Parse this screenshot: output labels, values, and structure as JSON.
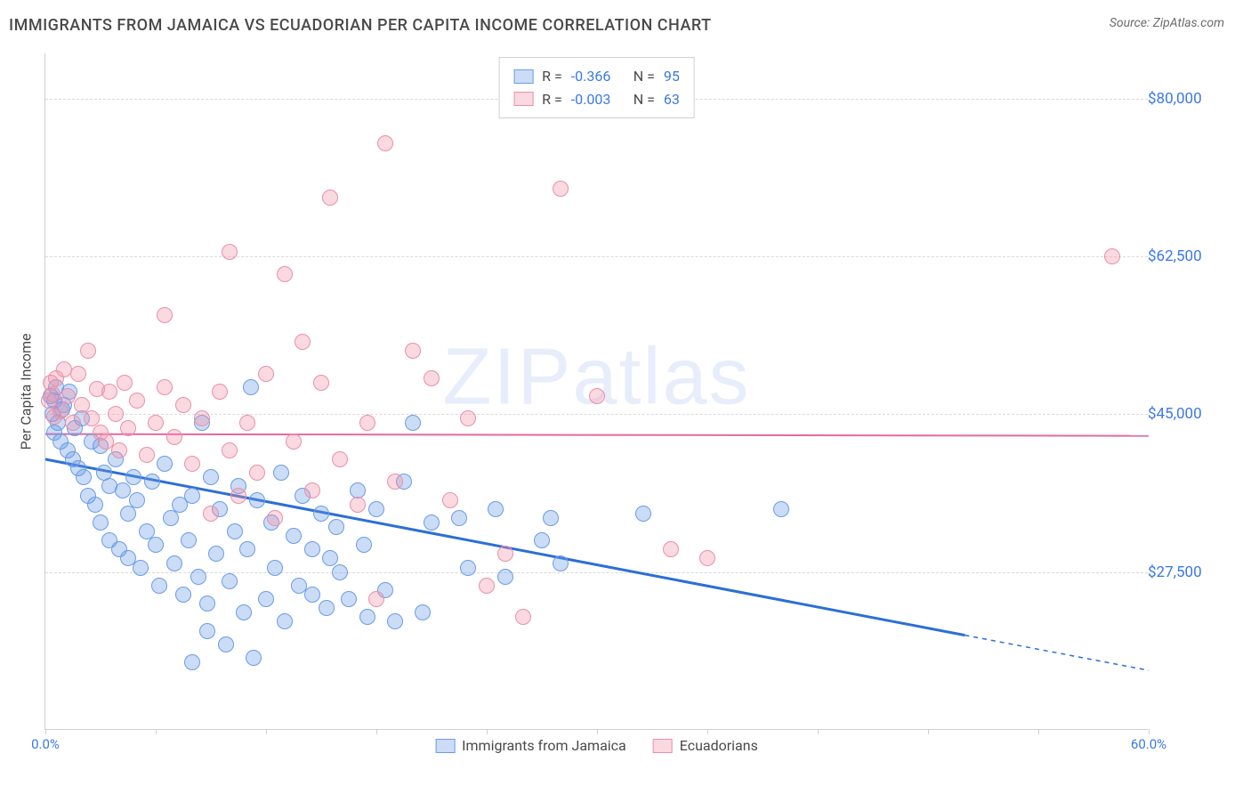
{
  "title": "IMMIGRANTS FROM JAMAICA VS ECUADORIAN PER CAPITA INCOME CORRELATION CHART",
  "source": "Source: ZipAtlas.com",
  "y_axis_label": "Per Capita Income",
  "watermark": {
    "bold": "ZIP",
    "thin": "atlas"
  },
  "xlim": [
    0,
    60
  ],
  "ylim": [
    10000,
    85000
  ],
  "y_ticks": [
    27500,
    45000,
    62500,
    80000
  ],
  "y_tick_labels": [
    "$27,500",
    "$45,000",
    "$62,500",
    "$80,000"
  ],
  "x_tick_positions": [
    0,
    6,
    12,
    18,
    24,
    30,
    36,
    42,
    48,
    54,
    60
  ],
  "x_tick_labels": {
    "0": "0.0%",
    "60": "60.0%"
  },
  "grid_color": "#d9d9d9",
  "axis_color": "#cfcfcf",
  "background_color": "#ffffff",
  "series": [
    {
      "name": "Immigrants from Jamaica",
      "fill": "rgba(107,156,230,0.35)",
      "stroke": "#6b9ce6",
      "marker_radius": 9,
      "R": "-0.366",
      "N": "95",
      "trend": {
        "x1": 0,
        "y1": 40000,
        "x2": 50,
        "y2": 20500,
        "extend_x2": 60,
        "extend_y2": 16600,
        "color": "#2b6fd6",
        "width": 3
      },
      "points": [
        [
          0.3,
          47000
        ],
        [
          0.4,
          45000
        ],
        [
          0.5,
          46500
        ],
        [
          0.6,
          48000
        ],
        [
          0.7,
          44000
        ],
        [
          0.8,
          42000
        ],
        [
          0.9,
          45500
        ],
        [
          0.5,
          43000
        ],
        [
          1.0,
          46000
        ],
        [
          1.2,
          41000
        ],
        [
          1.3,
          47500
        ],
        [
          1.5,
          40000
        ],
        [
          1.6,
          43500
        ],
        [
          1.8,
          39000
        ],
        [
          2.0,
          44500
        ],
        [
          2.1,
          38000
        ],
        [
          2.3,
          36000
        ],
        [
          2.5,
          42000
        ],
        [
          2.7,
          35000
        ],
        [
          3.0,
          41500
        ],
        [
          3.0,
          33000
        ],
        [
          3.2,
          38500
        ],
        [
          3.5,
          37000
        ],
        [
          3.5,
          31000
        ],
        [
          3.8,
          40000
        ],
        [
          4.0,
          30000
        ],
        [
          4.2,
          36500
        ],
        [
          4.5,
          34000
        ],
        [
          4.5,
          29000
        ],
        [
          4.8,
          38000
        ],
        [
          5.0,
          35500
        ],
        [
          5.2,
          28000
        ],
        [
          5.5,
          32000
        ],
        [
          5.8,
          37500
        ],
        [
          6.0,
          30500
        ],
        [
          6.2,
          26000
        ],
        [
          6.5,
          39500
        ],
        [
          6.8,
          33500
        ],
        [
          7.0,
          28500
        ],
        [
          7.3,
          35000
        ],
        [
          7.5,
          25000
        ],
        [
          7.8,
          31000
        ],
        [
          8.0,
          36000
        ],
        [
          8.3,
          27000
        ],
        [
          8.5,
          44000
        ],
        [
          8.8,
          21000
        ],
        [
          8.8,
          24000
        ],
        [
          9.0,
          38000
        ],
        [
          9.3,
          29500
        ],
        [
          9.5,
          34500
        ],
        [
          9.8,
          19500
        ],
        [
          10.0,
          26500
        ],
        [
          10.3,
          32000
        ],
        [
          10.5,
          37000
        ],
        [
          10.8,
          23000
        ],
        [
          11.0,
          30000
        ],
        [
          11.3,
          18000
        ],
        [
          11.2,
          48000
        ],
        [
          11.5,
          35500
        ],
        [
          12.0,
          24500
        ],
        [
          12.3,
          33000
        ],
        [
          12.5,
          28000
        ],
        [
          12.8,
          38500
        ],
        [
          13.0,
          22000
        ],
        [
          13.5,
          31500
        ],
        [
          13.8,
          26000
        ],
        [
          14.0,
          36000
        ],
        [
          14.5,
          25000
        ],
        [
          14.5,
          30000
        ],
        [
          15.0,
          34000
        ],
        [
          15.3,
          23500
        ],
        [
          15.5,
          29000
        ],
        [
          15.8,
          32500
        ],
        [
          16.0,
          27500
        ],
        [
          16.5,
          24500
        ],
        [
          17.0,
          36500
        ],
        [
          17.3,
          30500
        ],
        [
          17.5,
          22500
        ],
        [
          18.0,
          34500
        ],
        [
          18.5,
          25500
        ],
        [
          19.0,
          22000
        ],
        [
          19.5,
          37500
        ],
        [
          20.0,
          44000
        ],
        [
          20.5,
          23000
        ],
        [
          21.0,
          33000
        ],
        [
          22.5,
          33500
        ],
        [
          23.0,
          28000
        ],
        [
          24.5,
          34500
        ],
        [
          25.0,
          27000
        ],
        [
          27.0,
          31000
        ],
        [
          27.5,
          33500
        ],
        [
          28.0,
          28500
        ],
        [
          32.5,
          34000
        ],
        [
          40.0,
          34500
        ],
        [
          8.0,
          17500
        ]
      ]
    },
    {
      "name": "Ecuadorians",
      "fill": "rgba(240,145,170,0.35)",
      "stroke": "#e890aa",
      "marker_radius": 9,
      "R": "-0.003",
      "N": "63",
      "trend": {
        "x1": 0,
        "y1": 42800,
        "x2": 60,
        "y2": 42600,
        "color": "#e36aa0",
        "width": 2
      },
      "points": [
        [
          0.2,
          46500
        ],
        [
          0.3,
          48500
        ],
        [
          0.4,
          47200
        ],
        [
          0.5,
          44700
        ],
        [
          0.6,
          49000
        ],
        [
          0.8,
          45300
        ],
        [
          1.0,
          50000
        ],
        [
          1.2,
          47000
        ],
        [
          1.5,
          44000
        ],
        [
          1.8,
          49500
        ],
        [
          2.0,
          46000
        ],
        [
          2.3,
          52000
        ],
        [
          2.5,
          44500
        ],
        [
          2.8,
          47800
        ],
        [
          3.0,
          43000
        ],
        [
          3.3,
          42000
        ],
        [
          3.5,
          47500
        ],
        [
          3.8,
          45000
        ],
        [
          4.0,
          41000
        ],
        [
          4.3,
          48500
        ],
        [
          4.5,
          43500
        ],
        [
          5.0,
          46500
        ],
        [
          5.5,
          40500
        ],
        [
          6.0,
          44000
        ],
        [
          6.5,
          48000
        ],
        [
          6.5,
          56000
        ],
        [
          7.0,
          42500
        ],
        [
          7.5,
          46000
        ],
        [
          8.0,
          39500
        ],
        [
          8.5,
          44500
        ],
        [
          9.0,
          34000
        ],
        [
          9.5,
          47500
        ],
        [
          10.0,
          63000
        ],
        [
          10.0,
          41000
        ],
        [
          10.5,
          36000
        ],
        [
          11.0,
          44000
        ],
        [
          11.5,
          38500
        ],
        [
          12.0,
          49500
        ],
        [
          12.5,
          33500
        ],
        [
          13.0,
          60500
        ],
        [
          13.5,
          42000
        ],
        [
          14.0,
          53000
        ],
        [
          14.5,
          36500
        ],
        [
          15.0,
          48500
        ],
        [
          15.5,
          69000
        ],
        [
          16.0,
          40000
        ],
        [
          17.0,
          35000
        ],
        [
          17.5,
          44000
        ],
        [
          18.0,
          24500
        ],
        [
          18.5,
          75000
        ],
        [
          19.0,
          37500
        ],
        [
          20.0,
          52000
        ],
        [
          21.0,
          49000
        ],
        [
          22.0,
          35500
        ],
        [
          23.0,
          44500
        ],
        [
          24.0,
          26000
        ],
        [
          25.0,
          29500
        ],
        [
          26.0,
          22500
        ],
        [
          28.0,
          70000
        ],
        [
          30.0,
          47000
        ],
        [
          34.0,
          30000
        ],
        [
          36.0,
          29000
        ],
        [
          58.0,
          62500
        ]
      ]
    }
  ],
  "legend_top_labels": {
    "R": "R =",
    "N": "N ="
  },
  "legend_bottom": [
    {
      "label": "Immigrants from Jamaica",
      "fill": "rgba(107,156,230,0.35)",
      "stroke": "#6b9ce6"
    },
    {
      "label": "Ecuadorians",
      "fill": "rgba(240,145,170,0.35)",
      "stroke": "#e890aa"
    }
  ]
}
